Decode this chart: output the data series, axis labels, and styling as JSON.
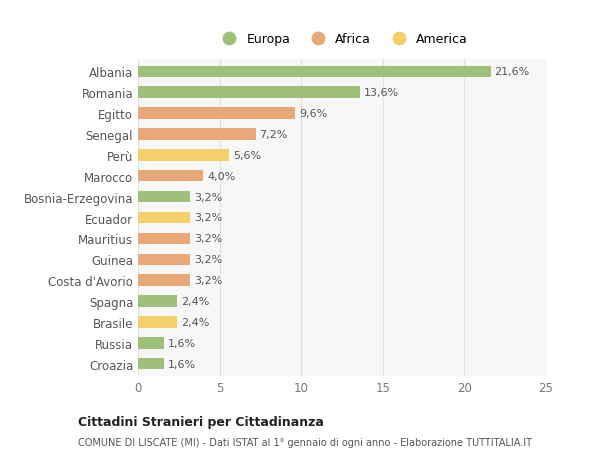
{
  "categories": [
    "Croazia",
    "Russia",
    "Brasile",
    "Spagna",
    "Costa d'Avorio",
    "Guinea",
    "Mauritius",
    "Ecuador",
    "Bosnia-Erzegovina",
    "Marocco",
    "Perù",
    "Senegal",
    "Egitto",
    "Romania",
    "Albania"
  ],
  "values": [
    1.6,
    1.6,
    2.4,
    2.4,
    3.2,
    3.2,
    3.2,
    3.2,
    3.2,
    4.0,
    5.6,
    7.2,
    9.6,
    13.6,
    21.6
  ],
  "colors": [
    "#9ec07a",
    "#9ec07a",
    "#f5d06a",
    "#9ec07a",
    "#e8a878",
    "#e8a878",
    "#e8a878",
    "#f5d06a",
    "#9ec07a",
    "#e8a878",
    "#f5d06a",
    "#e8a878",
    "#e8a878",
    "#9ec07a",
    "#9ec07a"
  ],
  "legend_labels": [
    "Europa",
    "Africa",
    "America"
  ],
  "legend_colors": [
    "#9ec07a",
    "#e8a878",
    "#f5d06a"
  ],
  "title": "Cittadini Stranieri per Cittadinanza",
  "subtitle": "COMUNE DI LISCATE (MI) - Dati ISTAT al 1° gennaio di ogni anno - Elaborazione TUTTITALIA.IT",
  "xlim": [
    0,
    25
  ],
  "xticks": [
    0,
    5,
    10,
    15,
    20,
    25
  ],
  "background_color": "#ffffff",
  "bar_background": "#f7f7f7",
  "grid_color": "#e0e0e0"
}
